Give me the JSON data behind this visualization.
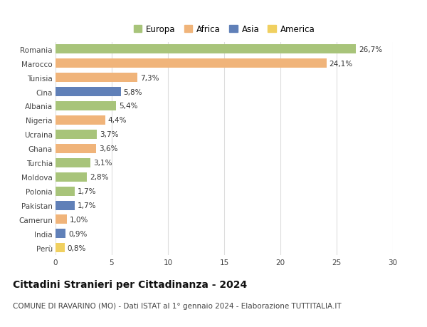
{
  "countries": [
    "Romania",
    "Marocco",
    "Tunisia",
    "Cina",
    "Albania",
    "Nigeria",
    "Ucraina",
    "Ghana",
    "Turchia",
    "Moldova",
    "Polonia",
    "Pakistan",
    "Camerun",
    "India",
    "Perù"
  ],
  "values": [
    26.7,
    24.1,
    7.3,
    5.8,
    5.4,
    4.4,
    3.7,
    3.6,
    3.1,
    2.8,
    1.7,
    1.7,
    1.0,
    0.9,
    0.8
  ],
  "labels": [
    "26,7%",
    "24,1%",
    "7,3%",
    "5,8%",
    "5,4%",
    "4,4%",
    "3,7%",
    "3,6%",
    "3,1%",
    "2,8%",
    "1,7%",
    "1,7%",
    "1,0%",
    "0,9%",
    "0,8%"
  ],
  "continents": [
    "Europa",
    "Africa",
    "Africa",
    "Asia",
    "Europa",
    "Africa",
    "Europa",
    "Africa",
    "Europa",
    "Europa",
    "Europa",
    "Asia",
    "Africa",
    "Asia",
    "America"
  ],
  "colors": {
    "Europa": "#a8c47a",
    "Africa": "#f0b47a",
    "Asia": "#6080b8",
    "America": "#f0d060"
  },
  "title": "Cittadini Stranieri per Cittadinanza - 2024",
  "subtitle": "COMUNE DI RAVARINO (MO) - Dati ISTAT al 1° gennaio 2024 - Elaborazione TUTTITALIA.IT",
  "xlim": [
    0,
    30
  ],
  "xticks": [
    0,
    5,
    10,
    15,
    20,
    25,
    30
  ],
  "background_color": "#ffffff",
  "grid_color": "#dddddd",
  "bar_height": 0.65,
  "label_fontsize": 7.5,
  "tick_fontsize": 7.5,
  "title_fontsize": 10,
  "subtitle_fontsize": 7.5,
  "legend_fontsize": 8.5
}
